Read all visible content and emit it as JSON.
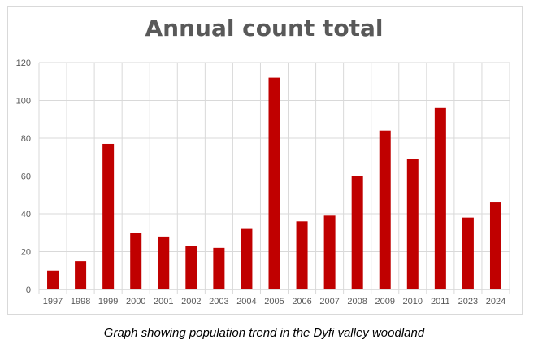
{
  "chart_data": {
    "type": "bar",
    "title": "Annual count total",
    "xlabel": "",
    "ylabel": "",
    "categories": [
      "1997",
      "1998",
      "1999",
      "2000",
      "2001",
      "2002",
      "2003",
      "2004",
      "2005",
      "2006",
      "2007",
      "2008",
      "2009",
      "2010",
      "2011",
      "2023",
      "2024"
    ],
    "values": [
      10,
      15,
      77,
      30,
      28,
      23,
      22,
      32,
      112,
      36,
      39,
      60,
      84,
      69,
      96,
      38,
      46
    ],
    "ylim": [
      0,
      120
    ],
    "yticks": [
      "0",
      "20",
      "40",
      "60",
      "80",
      "100",
      "120"
    ],
    "grid": true,
    "legend": "none",
    "bar_color": "#c00000"
  },
  "caption": "Graph showing population trend in the Dyfi valley woodland"
}
